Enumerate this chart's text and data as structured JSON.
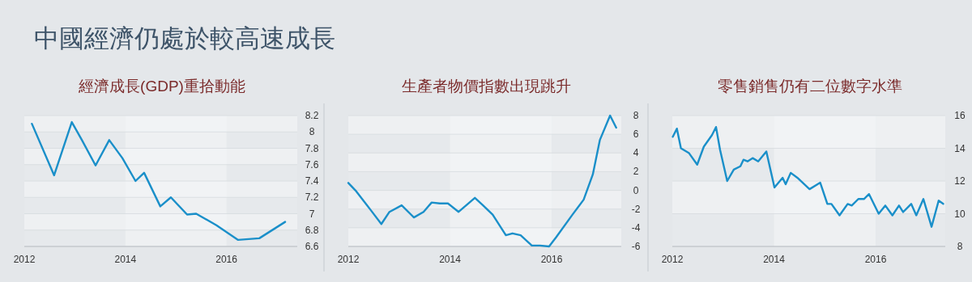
{
  "chart_data": [
    {
      "type": "line",
      "title": "中國經濟仍處於較高速成長",
      "subtitle": "經濟成長(GDP)重拾動能",
      "grid": true,
      "line_style": "solid",
      "x": [
        2012.15,
        2012.59,
        2012.94,
        2013.14,
        2013.41,
        2013.68,
        2013.94,
        2014.2,
        2014.37,
        2014.69,
        2014.9,
        2015.22,
        2015.4,
        2015.8,
        2016.23,
        2016.65,
        2017.16
      ],
      "series": [
        {
          "color": "#1a8fc9",
          "values": [
            8.1,
            7.47,
            8.12,
            7.9,
            7.59,
            7.9,
            7.68,
            7.4,
            7.5,
            7.09,
            7.2,
            6.99,
            7.0,
            6.86,
            6.68,
            6.7,
            6.9
          ]
        }
      ],
      "xlim": [
        2012,
        2017.4
      ],
      "xticks": [
        2012,
        2014,
        2016
      ],
      "bands": [
        {
          "axis": "x",
          "from": 2014,
          "to": 2016,
          "color": "#f3f5f7"
        }
      ],
      "ylim": [
        6.6,
        8.2
      ],
      "yticks": [
        6.6,
        6.8,
        7,
        7.2,
        7.4,
        7.6,
        7.8,
        8,
        8.2
      ]
    },
    {
      "type": "line",
      "title": "生產者物價指數出現跳升",
      "grid": true,
      "line_style": "solid",
      "x": [
        2012.0,
        2012.14,
        2012.44,
        2012.65,
        2012.81,
        2013.05,
        2013.29,
        2013.48,
        2013.64,
        2013.8,
        2013.96,
        2014.17,
        2014.49,
        2014.65,
        2014.84,
        2015.1,
        2015.23,
        2015.39,
        2015.61,
        2015.77,
        2015.95,
        2016.09,
        2016.41,
        2016.63,
        2016.81,
        2016.95,
        2017.15,
        2017.27
      ],
      "series": [
        {
          "color": "#1a8fc9",
          "values": [
            0.8,
            0.0,
            -2.1,
            -3.6,
            -2.3,
            -1.6,
            -2.9,
            -2.3,
            -1.3,
            -1.4,
            -1.4,
            -2.3,
            -0.8,
            -1.6,
            -2.6,
            -4.8,
            -4.6,
            -4.8,
            -5.9,
            -5.9,
            -6.0,
            -5.0,
            -2.6,
            -1.0,
            1.7,
            5.4,
            8.0,
            6.7
          ]
        }
      ],
      "xlim": [
        2012,
        2017.37
      ],
      "xticks": [
        2012,
        2014,
        2016
      ],
      "ylim": [
        -6,
        8
      ],
      "yticks": [
        -6,
        -4,
        -2,
        0,
        2,
        4,
        6,
        8
      ],
      "bands": [
        {
          "axis": "x",
          "from": 2014,
          "to": 2016,
          "color": "#f3f5f7"
        }
      ]
    },
    {
      "type": "line",
      "title": "零售銷售仍有二位數字水準",
      "grid": true,
      "line_style": "solid",
      "x": [
        2012.01,
        2012.09,
        2012.17,
        2012.33,
        2012.49,
        2012.62,
        2012.78,
        2012.86,
        2012.94,
        2013.08,
        2013.21,
        2013.34,
        2013.4,
        2013.48,
        2013.58,
        2013.69,
        2013.85,
        2014.01,
        2014.17,
        2014.23,
        2014.33,
        2014.46,
        2014.7,
        2014.91,
        2015.05,
        2015.13,
        2015.29,
        2015.45,
        2015.53,
        2015.66,
        2015.77,
        2015.87,
        2016.06,
        2016.19,
        2016.33,
        2016.46,
        2016.54,
        2016.7,
        2016.8,
        2016.94,
        2017.1,
        2017.24,
        2017.33
      ],
      "series": [
        {
          "color": "#1a8fc9",
          "values": [
            14.7,
            15.2,
            14.0,
            13.7,
            13.0,
            14.1,
            14.8,
            15.3,
            13.9,
            12.0,
            12.7,
            12.9,
            13.3,
            13.2,
            13.4,
            13.2,
            13.8,
            11.6,
            12.2,
            11.8,
            12.5,
            12.2,
            11.5,
            11.9,
            10.6,
            10.6,
            9.9,
            10.6,
            10.5,
            10.9,
            10.9,
            11.2,
            10.0,
            10.5,
            9.9,
            10.5,
            10.1,
            10.6,
            9.9,
            10.9,
            9.2,
            10.8,
            10.6
          ]
        }
      ],
      "xlim": [
        2012,
        2017.37
      ],
      "xticks": [
        2012,
        2014,
        2016
      ],
      "ylim": [
        8,
        16
      ],
      "yticks": [
        8,
        10,
        12,
        14,
        16
      ],
      "bands": [
        {
          "axis": "x",
          "from": 2014,
          "to": 2016,
          "color": "#f3f5f7"
        }
      ]
    }
  ]
}
